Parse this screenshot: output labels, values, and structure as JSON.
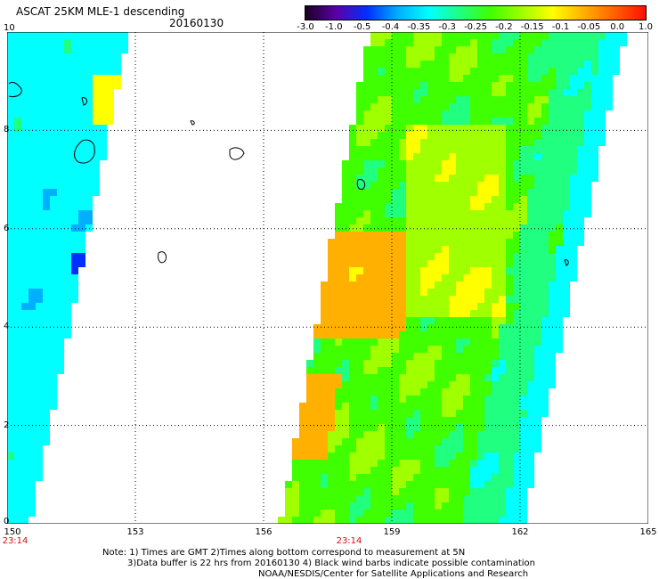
{
  "header": {
    "title": "ASCAT 25KM MLE-1 descending",
    "date": "20160130"
  },
  "colorbar": {
    "labels": [
      "-3.0",
      "-1.0",
      "-0.5",
      "-0.4",
      "-0.35",
      "-0.3",
      "-0.25",
      "-0.2",
      "-0.15",
      "-0.1",
      "-0.05",
      "0.0",
      "1.0"
    ],
    "colors": [
      "#1a0020",
      "#5a00a8",
      "#0030ff",
      "#00b0ff",
      "#00ffff",
      "#20ff80",
      "#40ff00",
      "#a0ff00",
      "#ffff00",
      "#ffb000",
      "#ff6000",
      "#ff1000"
    ]
  },
  "axes": {
    "lat_labels": [
      "10",
      "8",
      "6",
      "4",
      "2",
      "0"
    ],
    "lon_labels": [
      "150",
      "153",
      "156",
      "159",
      "162",
      "165"
    ],
    "time_labels": [
      {
        "lon": "150",
        "text": "23:14"
      },
      {
        "lon": "158",
        "text": "23:14"
      }
    ]
  },
  "notes": {
    "line1": "Note: 1) Times are GMT 2)Times along bottom correspond to measurement at 5N",
    "line2": "3)Data buffer is 22 hrs from 20160130 4) Black wind barbs indicate possible contamination",
    "line3": "NOAA/NESDIS/Center for Satellite Applications and Research"
  }
}
